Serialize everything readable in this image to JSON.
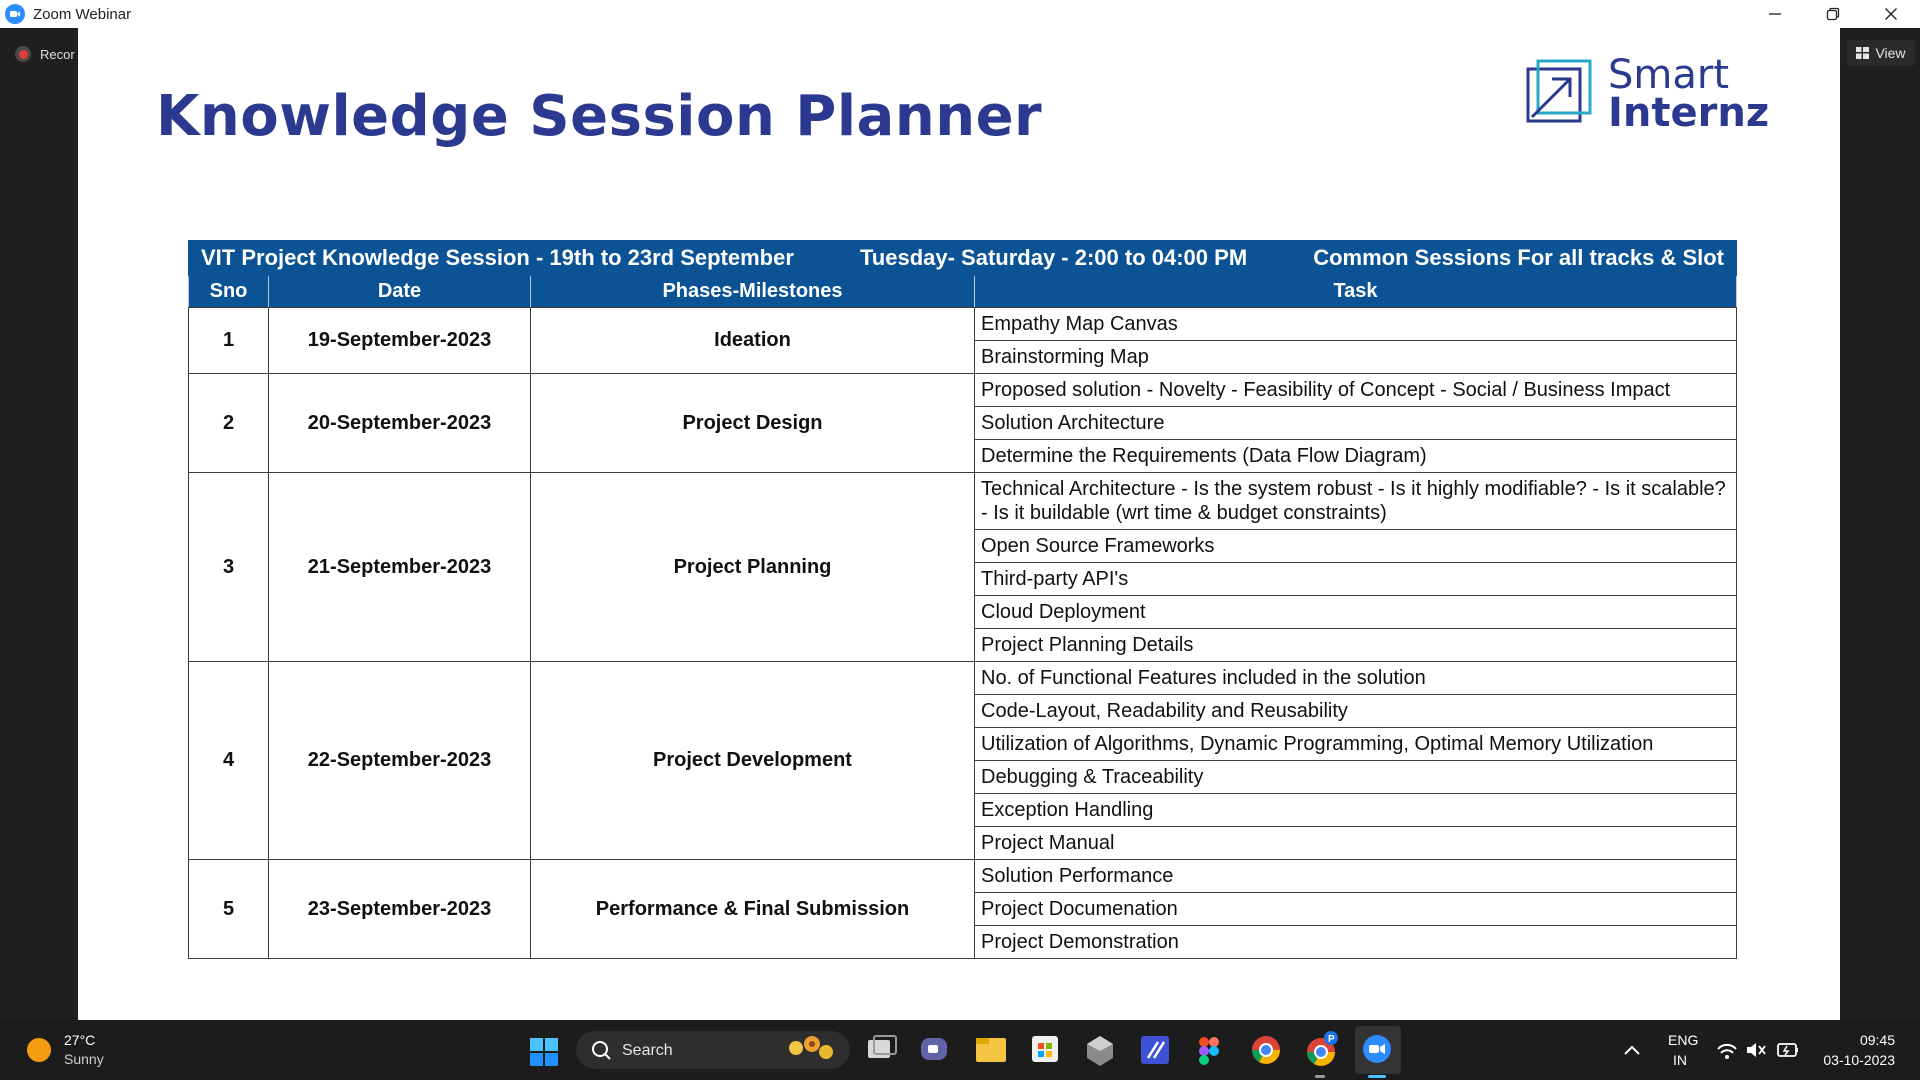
{
  "window": {
    "title": "Zoom Webinar"
  },
  "recording": {
    "label": "Recor"
  },
  "view_button": {
    "label": "View"
  },
  "slide": {
    "title": "Knowledge Session Planner",
    "brand": {
      "line1": "Smart",
      "line2": "Internz"
    },
    "banner": {
      "left": "VIT Project Knowledge Session - 19th to 23rd September",
      "middle": "Tuesday- Saturday - 2:00 to 04:00 PM",
      "right": "Common Sessions For all tracks & Slot"
    },
    "headers": {
      "sno": "Sno",
      "date": "Date",
      "phase": "Phases-Milestones",
      "task": "Task"
    },
    "rows": [
      {
        "sno": "1",
        "date": "19-September-2023",
        "phase": "Ideation",
        "tasks": [
          "Empathy Map Canvas",
          "Brainstorming Map"
        ]
      },
      {
        "sno": "2",
        "date": "20-September-2023",
        "phase": "Project Design",
        "tasks": [
          "Proposed solution - Novelty - Feasibility of Concept - Social / Business Impact",
          "Solution Architecture",
          "Determine the Requirements (Data Flow Diagram)"
        ]
      },
      {
        "sno": "3",
        "date": "21-September-2023",
        "phase": "Project Planning",
        "tasks": [
          "Technical Architecture - Is the system robust - Is it highly modifiable? - Is it scalable? - Is it buildable (wrt time & budget constraints)",
          "Open Source Frameworks",
          "Third-party API's",
          "Cloud Deployment",
          "Project Planning Details"
        ]
      },
      {
        "sno": "4",
        "date": "22-September-2023",
        "phase": "Project Development",
        "tasks": [
          "No. of Functional Features included in the solution",
          "Code-Layout, Readability and Reusability",
          "Utilization of Algorithms, Dynamic Programming, Optimal Memory Utilization",
          "Debugging & Traceability",
          "Exception Handling",
          "Project Manual"
        ]
      },
      {
        "sno": "5",
        "date": "23-September-2023",
        "phase": "Performance & Final Submission",
        "tasks": [
          "Solution Performance",
          "Project Documenation",
          "Project Demonstration"
        ]
      }
    ]
  },
  "taskbar": {
    "weather": {
      "temp": "27°C",
      "condition": "Sunny"
    },
    "search_label": "Search",
    "language": {
      "line1": "ENG",
      "line2": "IN"
    },
    "clock": {
      "time": "09:45",
      "date": "03-10-2023"
    },
    "chrome_badge": "P"
  },
  "colors": {
    "accent": "#2b3990",
    "table_header": "#0b5394",
    "taskbar": "#1c1c1c"
  }
}
